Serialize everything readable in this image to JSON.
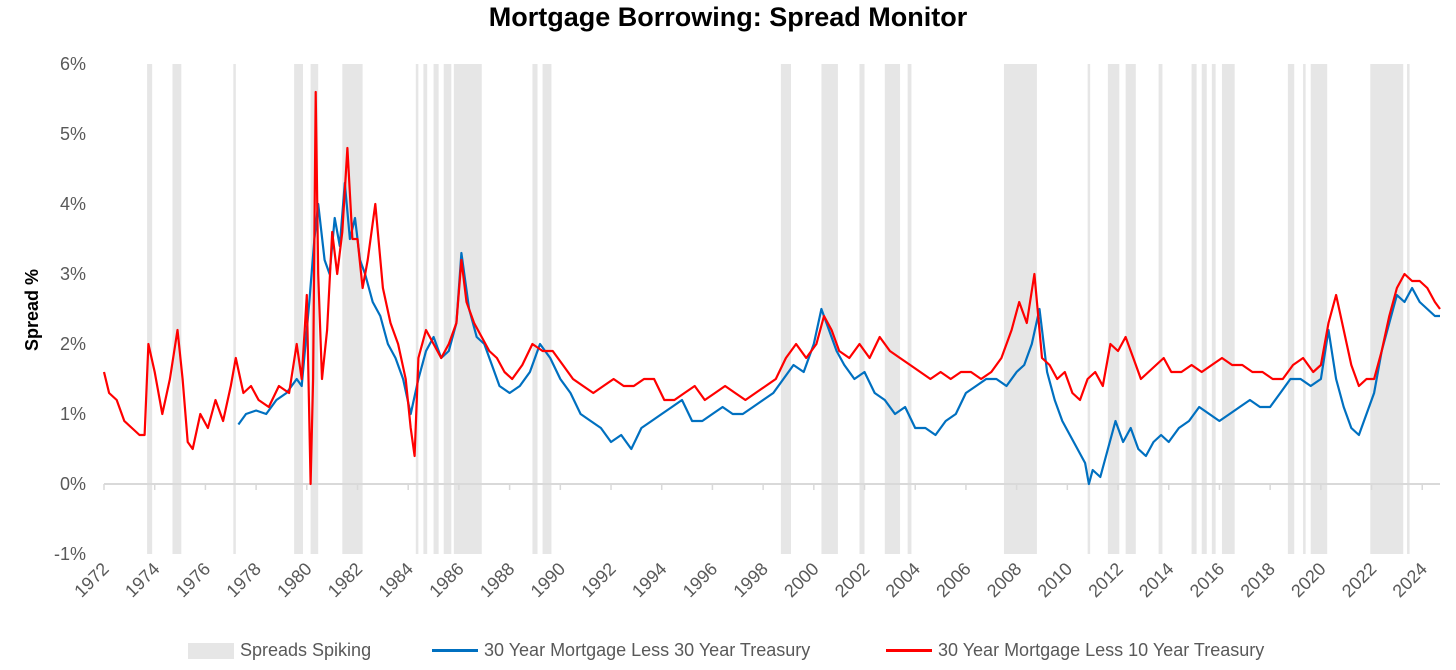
{
  "chart_data": {
    "type": "line",
    "title": "Mortgage Borrowing: Spread Monitor",
    "xlabel": "",
    "ylabel": "Spread %",
    "xlim": [
      1972,
      2024.7
    ],
    "ylim": [
      -1,
      6
    ],
    "y_ticks": [
      "-1%",
      "0%",
      "1%",
      "2%",
      "3%",
      "4%",
      "5%",
      "6%"
    ],
    "x_ticks": [
      "1972",
      "1974",
      "1976",
      "1978",
      "1980",
      "1982",
      "1984",
      "1986",
      "1988",
      "1990",
      "1992",
      "1994",
      "1996",
      "1998",
      "2000",
      "2002",
      "2004",
      "2006",
      "2008",
      "2010",
      "2012",
      "2014",
      "2016",
      "2018",
      "2020",
      "2022",
      "2024"
    ],
    "grid": false,
    "legend_position": "bottom",
    "shaded_regions": {
      "name": "Spreads Spiking",
      "color": "#e6e6e6",
      "intervals": [
        [
          1973.7,
          1973.9
        ],
        [
          1974.7,
          1975.05
        ],
        [
          1977.1,
          1977.2
        ],
        [
          1979.5,
          1979.85
        ],
        [
          1980.15,
          1980.45
        ],
        [
          1981.4,
          1982.2
        ],
        [
          1984.3,
          1984.4
        ],
        [
          1984.6,
          1984.75
        ],
        [
          1985.0,
          1985.2
        ],
        [
          1985.4,
          1985.7
        ],
        [
          1985.8,
          1986.9
        ],
        [
          1988.9,
          1989.1
        ],
        [
          1989.3,
          1989.65
        ],
        [
          1998.7,
          1999.1
        ],
        [
          2000.3,
          2000.95
        ],
        [
          2001.8,
          2002.0
        ],
        [
          2002.8,
          2003.4
        ],
        [
          2003.7,
          2003.85
        ],
        [
          2007.5,
          2008.8
        ],
        [
          2010.8,
          2010.9
        ],
        [
          2011.6,
          2012.05
        ],
        [
          2012.3,
          2012.7
        ],
        [
          2013.6,
          2013.75
        ],
        [
          2014.9,
          2015.1
        ],
        [
          2015.3,
          2015.5
        ],
        [
          2015.7,
          2015.85
        ],
        [
          2016.1,
          2016.6
        ],
        [
          2018.7,
          2018.95
        ],
        [
          2019.3,
          2019.4
        ],
        [
          2019.6,
          2020.25
        ],
        [
          2021.95,
          2023.25
        ],
        [
          2023.4,
          2023.5
        ]
      ]
    },
    "series": [
      {
        "name": "30 Year Mortgage Less 30 Year Treasury",
        "color": "#0070c0",
        "x": [
          1977.3,
          1977.6,
          1978.0,
          1978.4,
          1978.8,
          1979.2,
          1979.6,
          1979.8,
          1980.0,
          1980.1,
          1980.3,
          1980.45,
          1980.7,
          1980.9,
          1981.1,
          1981.3,
          1981.5,
          1981.7,
          1981.9,
          1982.1,
          1982.3,
          1982.6,
          1982.9,
          1983.2,
          1983.5,
          1983.8,
          1984.1,
          1984.4,
          1984.7,
          1985.0,
          1985.3,
          1985.6,
          1985.9,
          1986.1,
          1986.4,
          1986.7,
          1987.0,
          1987.3,
          1987.6,
          1988.0,
          1988.4,
          1988.8,
          1989.2,
          1989.6,
          1990.0,
          1990.4,
          1990.8,
          1991.2,
          1991.6,
          1992.0,
          1992.4,
          1992.8,
          1993.2,
          1993.6,
          1994.0,
          1994.4,
          1994.8,
          1995.2,
          1995.6,
          1996.0,
          1996.4,
          1996.8,
          1997.2,
          1997.6,
          1998.0,
          1998.4,
          1998.8,
          1999.2,
          1999.6,
          2000.0,
          2000.3,
          2000.6,
          2000.9,
          2001.2,
          2001.6,
          2002.0,
          2002.4,
          2002.8,
          2003.2,
          2003.6,
          2004.0,
          2004.4,
          2004.8,
          2005.2,
          2005.6,
          2006.0,
          2006.4,
          2006.8,
          2007.2,
          2007.6,
          2008.0,
          2008.3,
          2008.6,
          2008.9,
          2009.2,
          2009.5,
          2009.8,
          2010.1,
          2010.4,
          2010.7,
          2010.85,
          2011.0,
          2011.3,
          2011.6,
          2011.9,
          2012.2,
          2012.5,
          2012.8,
          2013.1,
          2013.4,
          2013.7,
          2014.0,
          2014.4,
          2014.8,
          2015.2,
          2015.6,
          2016.0,
          2016.4,
          2016.8,
          2017.2,
          2017.6,
          2018.0,
          2018.4,
          2018.8,
          2019.2,
          2019.6,
          2020.0,
          2020.3,
          2020.6,
          2020.9,
          2021.2,
          2021.5,
          2021.8,
          2022.1,
          2022.4,
          2022.7,
          2023.0,
          2023.3,
          2023.6,
          2023.9,
          2024.2,
          2024.5,
          2024.7
        ],
        "y": [
          0.85,
          1.0,
          1.05,
          1.0,
          1.2,
          1.3,
          1.5,
          1.4,
          2.2,
          2.6,
          3.5,
          4.0,
          3.2,
          3.0,
          3.8,
          3.4,
          4.3,
          3.5,
          3.8,
          3.2,
          3.0,
          2.6,
          2.4,
          2.0,
          1.8,
          1.5,
          1.0,
          1.5,
          1.9,
          2.1,
          1.8,
          1.9,
          2.3,
          3.3,
          2.5,
          2.1,
          2.0,
          1.7,
          1.4,
          1.3,
          1.4,
          1.6,
          2.0,
          1.8,
          1.5,
          1.3,
          1.0,
          0.9,
          0.8,
          0.6,
          0.7,
          0.5,
          0.8,
          0.9,
          1.0,
          1.1,
          1.2,
          0.9,
          0.9,
          1.0,
          1.1,
          1.0,
          1.0,
          1.1,
          1.2,
          1.3,
          1.5,
          1.7,
          1.6,
          2.0,
          2.5,
          2.2,
          1.9,
          1.7,
          1.5,
          1.6,
          1.3,
          1.2,
          1.0,
          1.1,
          0.8,
          0.8,
          0.7,
          0.9,
          1.0,
          1.3,
          1.4,
          1.5,
          1.5,
          1.4,
          1.6,
          1.7,
          2.0,
          2.5,
          1.6,
          1.2,
          0.9,
          0.7,
          0.5,
          0.3,
          0.0,
          0.2,
          0.1,
          0.5,
          0.9,
          0.6,
          0.8,
          0.5,
          0.4,
          0.6,
          0.7,
          0.6,
          0.8,
          0.9,
          1.1,
          1.0,
          0.9,
          1.0,
          1.1,
          1.2,
          1.1,
          1.1,
          1.3,
          1.5,
          1.5,
          1.4,
          1.5,
          2.2,
          1.5,
          1.1,
          0.8,
          0.7,
          1.0,
          1.3,
          1.9,
          2.3,
          2.7,
          2.6,
          2.8,
          2.6,
          2.5,
          2.4,
          2.4
        ]
      },
      {
        "name": "30 Year Mortgage Less 10 Year Treasury",
        "color": "#ff0000",
        "x": [
          1972.0,
          1972.2,
          1972.5,
          1972.8,
          1973.1,
          1973.4,
          1973.6,
          1973.75,
          1974.0,
          1974.3,
          1974.6,
          1974.9,
          1975.1,
          1975.3,
          1975.5,
          1975.8,
          1976.1,
          1976.4,
          1976.7,
          1977.0,
          1977.2,
          1977.5,
          1977.8,
          1978.1,
          1978.5,
          1978.9,
          1979.3,
          1979.6,
          1979.8,
          1980.0,
          1980.15,
          1980.25,
          1980.35,
          1980.45,
          1980.6,
          1980.8,
          1981.0,
          1981.2,
          1981.4,
          1981.6,
          1981.8,
          1982.0,
          1982.2,
          1982.4,
          1982.7,
          1983.0,
          1983.3,
          1983.6,
          1983.9,
          1984.1,
          1984.25,
          1984.4,
          1984.7,
          1985.0,
          1985.3,
          1985.6,
          1985.9,
          1986.1,
          1986.3,
          1986.6,
          1986.9,
          1987.2,
          1987.5,
          1987.8,
          1988.1,
          1988.5,
          1988.9,
          1989.3,
          1989.7,
          1990.1,
          1990.5,
          1990.9,
          1991.3,
          1991.7,
          1992.1,
          1992.5,
          1992.9,
          1993.3,
          1993.7,
          1994.1,
          1994.5,
          1994.9,
          1995.3,
          1995.7,
          1996.1,
          1996.5,
          1996.9,
          1997.3,
          1997.7,
          1998.1,
          1998.5,
          1998.9,
          1999.3,
          1999.7,
          2000.1,
          2000.4,
          2000.7,
          2001.0,
          2001.4,
          2001.8,
          2002.2,
          2002.6,
          2003.0,
          2003.4,
          2003.8,
          2004.2,
          2004.6,
          2005.0,
          2005.4,
          2005.8,
          2006.2,
          2006.6,
          2007.0,
          2007.4,
          2007.8,
          2008.1,
          2008.4,
          2008.7,
          2009.0,
          2009.3,
          2009.6,
          2009.9,
          2010.2,
          2010.5,
          2010.8,
          2011.1,
          2011.4,
          2011.7,
          2012.0,
          2012.3,
          2012.6,
          2012.9,
          2013.2,
          2013.5,
          2013.8,
          2014.1,
          2014.5,
          2014.9,
          2015.3,
          2015.7,
          2016.1,
          2016.5,
          2016.9,
          2017.3,
          2017.7,
          2018.1,
          2018.5,
          2018.9,
          2019.3,
          2019.7,
          2020.0,
          2020.3,
          2020.6,
          2020.9,
          2021.2,
          2021.5,
          2021.8,
          2022.1,
          2022.4,
          2022.7,
          2023.0,
          2023.3,
          2023.6,
          2023.9,
          2024.2,
          2024.5,
          2024.7
        ],
        "y": [
          1.6,
          1.3,
          1.2,
          0.9,
          0.8,
          0.7,
          0.7,
          2.0,
          1.6,
          1.0,
          1.5,
          2.2,
          1.5,
          0.6,
          0.5,
          1.0,
          0.8,
          1.2,
          0.9,
          1.4,
          1.8,
          1.3,
          1.4,
          1.2,
          1.1,
          1.4,
          1.3,
          2.0,
          1.5,
          2.7,
          0.0,
          1.5,
          5.6,
          3.0,
          1.5,
          2.2,
          3.6,
          3.0,
          3.6,
          4.8,
          3.5,
          3.5,
          2.8,
          3.2,
          4.0,
          2.8,
          2.3,
          2.0,
          1.5,
          0.8,
          0.4,
          1.8,
          2.2,
          2.0,
          1.8,
          2.0,
          2.3,
          3.2,
          2.6,
          2.3,
          2.1,
          1.9,
          1.8,
          1.6,
          1.5,
          1.7,
          2.0,
          1.9,
          1.9,
          1.7,
          1.5,
          1.4,
          1.3,
          1.4,
          1.5,
          1.4,
          1.4,
          1.5,
          1.5,
          1.2,
          1.2,
          1.3,
          1.4,
          1.2,
          1.3,
          1.4,
          1.3,
          1.2,
          1.3,
          1.4,
          1.5,
          1.8,
          2.0,
          1.8,
          2.0,
          2.4,
          2.2,
          1.9,
          1.8,
          2.0,
          1.8,
          2.1,
          1.9,
          1.8,
          1.7,
          1.6,
          1.5,
          1.6,
          1.5,
          1.6,
          1.6,
          1.5,
          1.6,
          1.8,
          2.2,
          2.6,
          2.3,
          3.0,
          1.8,
          1.7,
          1.5,
          1.6,
          1.3,
          1.2,
          1.5,
          1.6,
          1.4,
          2.0,
          1.9,
          2.1,
          1.8,
          1.5,
          1.6,
          1.7,
          1.8,
          1.6,
          1.6,
          1.7,
          1.6,
          1.7,
          1.8,
          1.7,
          1.7,
          1.6,
          1.6,
          1.5,
          1.5,
          1.7,
          1.8,
          1.6,
          1.7,
          2.3,
          2.7,
          2.2,
          1.7,
          1.4,
          1.5,
          1.5,
          1.9,
          2.4,
          2.8,
          3.0,
          2.9,
          2.9,
          2.8,
          2.6,
          2.5
        ]
      }
    ]
  },
  "legend": {
    "shade_label": "Spreads Spiking",
    "series1_label": "30 Year Mortgage Less 30 Year Treasury",
    "series2_label": "30 Year Mortgage Less 10 Year Treasury"
  }
}
